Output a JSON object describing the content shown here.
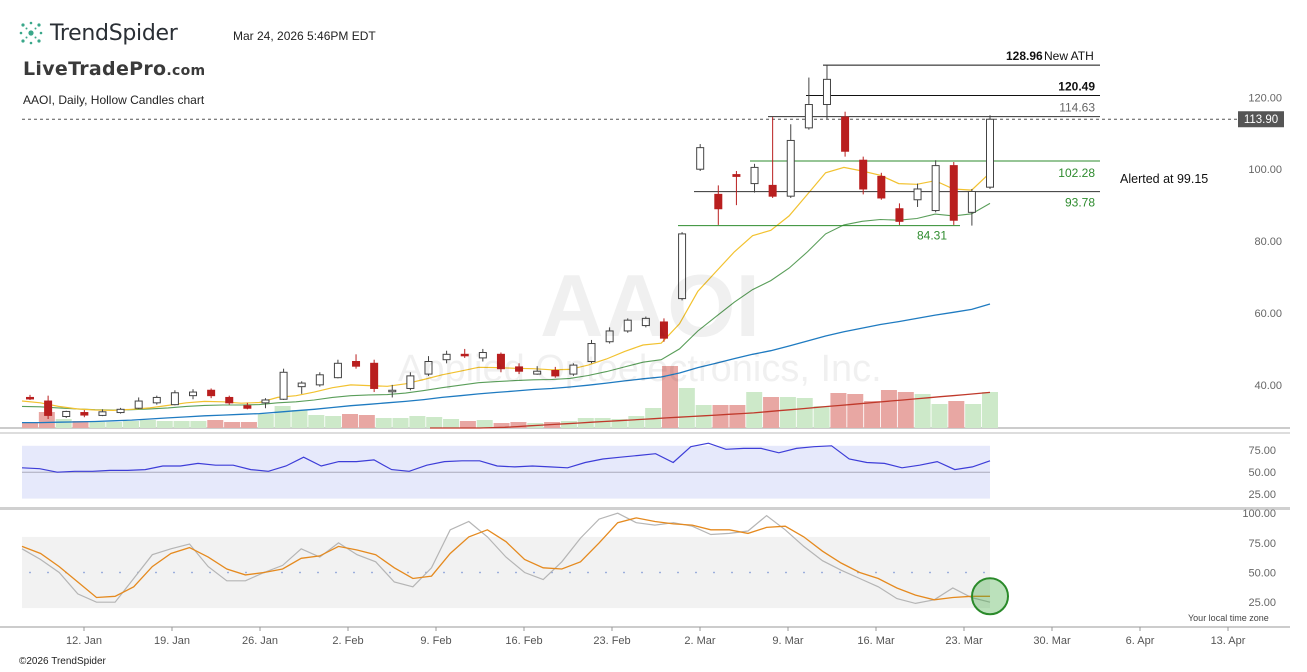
{
  "header": {
    "brand": "TrendSpider",
    "datetime": "Mar 24, 2026 5:46PM EDT",
    "overlay_brand": "LiveTradePro",
    "overlay_brand_suffix": ".com",
    "subtitle": "AAOI, Daily, Hollow Candles chart",
    "watermark_symbol": "AAOI",
    "watermark_company": "Applied Optoelectronics, Inc.",
    "copyright": "©2026 TrendSpider",
    "timezone_note": "Your local time zone"
  },
  "colors": {
    "up": "#9a9a9a",
    "down": "#b91f1f",
    "ema_fast": "#f2c230",
    "ema_mid": "#5a9e5a",
    "sma_50": "#1f7bc1",
    "sma_200": "#c0392b",
    "vol_up": "#cde9c9",
    "vol_down": "#e8a7a3",
    "rsi_line": "#3d3dd8",
    "rsi_band": "#e6e9fb",
    "stoch_k": "#b5b5b5",
    "stoch_d": "#e58a1f",
    "price_tag_bg": "#555555",
    "green_level": "#2e8b2e"
  },
  "chart_data": {
    "type": "candlestick",
    "symbol": "AAOI",
    "timeframe": "Daily",
    "ylim": [
      28,
      134
    ],
    "x_tick_labels": [
      "12. Jan",
      "19. Jan",
      "26. Jan",
      "2. Feb",
      "9. Feb",
      "16. Feb",
      "23. Feb",
      "2. Mar",
      "9. Mar",
      "16. Mar",
      "23. Mar",
      "30. Mar",
      "6. Apr",
      "13. Apr"
    ],
    "y_tick_labels": [
      "40.00",
      "60.00",
      "80.00",
      "100.00",
      "120.00"
    ],
    "last_price": "113.90",
    "candles": [
      {
        "o": 36.5,
        "h": 37.2,
        "l": 35.8,
        "c": 36.2
      },
      {
        "o": 35.5,
        "h": 37.0,
        "l": 30.5,
        "c": 31.5
      },
      {
        "o": 31.2,
        "h": 32.8,
        "l": 30.8,
        "c": 32.6
      },
      {
        "o": 32.3,
        "h": 33.0,
        "l": 31.0,
        "c": 31.6
      },
      {
        "o": 31.5,
        "h": 33.2,
        "l": 31.3,
        "c": 32.5
      },
      {
        "o": 32.3,
        "h": 33.6,
        "l": 32.0,
        "c": 33.2
      },
      {
        "o": 33.5,
        "h": 36.5,
        "l": 33.3,
        "c": 35.5
      },
      {
        "o": 35.0,
        "h": 37.0,
        "l": 34.5,
        "c": 36.5
      },
      {
        "o": 34.5,
        "h": 38.5,
        "l": 34.3,
        "c": 37.8
      },
      {
        "o": 37.0,
        "h": 38.8,
        "l": 36.0,
        "c": 38.0
      },
      {
        "o": 38.5,
        "h": 39.0,
        "l": 36.3,
        "c": 37.0
      },
      {
        "o": 36.5,
        "h": 37.0,
        "l": 34.5,
        "c": 35.0
      },
      {
        "o": 34.2,
        "h": 35.0,
        "l": 33.2,
        "c": 33.5
      },
      {
        "o": 35.0,
        "h": 36.3,
        "l": 33.5,
        "c": 35.8
      },
      {
        "o": 36.0,
        "h": 44.5,
        "l": 35.8,
        "c": 43.5
      },
      {
        "o": 39.5,
        "h": 41.0,
        "l": 37.5,
        "c": 40.5
      },
      {
        "o": 40.0,
        "h": 43.5,
        "l": 39.5,
        "c": 42.8
      },
      {
        "o": 42.0,
        "h": 47.0,
        "l": 41.8,
        "c": 46.0
      },
      {
        "o": 46.5,
        "h": 48.5,
        "l": 44.5,
        "c": 45.2
      },
      {
        "o": 46.0,
        "h": 47.0,
        "l": 38.0,
        "c": 39.0
      },
      {
        "o": 38.5,
        "h": 40.0,
        "l": 36.5,
        "c": 38.5
      },
      {
        "o": 39.0,
        "h": 43.5,
        "l": 38.5,
        "c": 42.5
      },
      {
        "o": 43.0,
        "h": 48.0,
        "l": 42.5,
        "c": 46.5
      },
      {
        "o": 47.0,
        "h": 49.5,
        "l": 46.0,
        "c": 48.5
      },
      {
        "o": 48.5,
        "h": 50.0,
        "l": 47.5,
        "c": 48.2
      },
      {
        "o": 47.5,
        "h": 50.0,
        "l": 46.5,
        "c": 49.0
      },
      {
        "o": 48.5,
        "h": 49.0,
        "l": 43.5,
        "c": 44.5
      },
      {
        "o": 45.0,
        "h": 46.0,
        "l": 43.0,
        "c": 43.8
      },
      {
        "o": 43.0,
        "h": 45.2,
        "l": 42.8,
        "c": 43.8
      },
      {
        "o": 44.0,
        "h": 45.0,
        "l": 42.0,
        "c": 42.5
      },
      {
        "o": 43.0,
        "h": 46.0,
        "l": 42.5,
        "c": 45.5
      },
      {
        "o": 46.5,
        "h": 52.5,
        "l": 46.0,
        "c": 51.5
      },
      {
        "o": 52.0,
        "h": 56.0,
        "l": 51.5,
        "c": 55.0
      },
      {
        "o": 55.0,
        "h": 58.5,
        "l": 54.5,
        "c": 58.0
      },
      {
        "o": 56.5,
        "h": 59.0,
        "l": 56.0,
        "c": 58.5
      },
      {
        "o": 57.5,
        "h": 58.5,
        "l": 52.0,
        "c": 53.0
      },
      {
        "o": 64.0,
        "h": 82.5,
        "l": 63.5,
        "c": 82.0
      },
      {
        "o": 100.0,
        "h": 107.0,
        "l": 99.5,
        "c": 106.0
      },
      {
        "o": 93.0,
        "h": 95.5,
        "l": 84.5,
        "c": 89.0
      },
      {
        "o": 98.5,
        "h": 99.5,
        "l": 90.0,
        "c": 98.0
      },
      {
        "o": 96.0,
        "h": 101.5,
        "l": 93.5,
        "c": 100.5
      },
      {
        "o": 95.5,
        "h": 114.5,
        "l": 92.0,
        "c": 92.5
      },
      {
        "o": 92.5,
        "h": 112.5,
        "l": 92.0,
        "c": 108.0
      },
      {
        "o": 111.5,
        "h": 125.5,
        "l": 111.0,
        "c": 118.0
      },
      {
        "o": 118.0,
        "h": 128.96,
        "l": 114.0,
        "c": 125.0
      },
      {
        "o": 114.5,
        "h": 116.0,
        "l": 103.5,
        "c": 105.0
      },
      {
        "o": 102.5,
        "h": 103.5,
        "l": 93.0,
        "c": 94.5
      },
      {
        "o": 98.0,
        "h": 99.0,
        "l": 91.5,
        "c": 92.0
      },
      {
        "o": 89.0,
        "h": 90.5,
        "l": 84.5,
        "c": 85.5
      },
      {
        "o": 91.5,
        "h": 96.0,
        "l": 89.5,
        "c": 94.5
      },
      {
        "o": 88.5,
        "h": 102.5,
        "l": 88.0,
        "c": 101.0
      },
      {
        "o": 101.0,
        "h": 102.0,
        "l": 84.5,
        "c": 85.8
      },
      {
        "o": 88.0,
        "h": 94.5,
        "l": 84.31,
        "c": 93.8
      },
      {
        "o": 95.0,
        "h": 115.0,
        "l": 94.5,
        "c": 113.9
      }
    ],
    "volume": [
      5,
      16,
      9,
      7,
      6,
      6,
      7,
      8,
      7,
      7,
      7,
      8,
      6,
      6,
      14,
      22,
      18,
      13,
      12,
      14,
      13,
      10,
      10,
      12,
      11,
      9,
      7,
      8,
      5,
      6,
      5,
      6,
      7,
      10,
      10,
      9,
      12,
      20,
      62,
      40,
      23,
      23,
      23,
      36,
      31,
      31,
      30,
      22,
      35,
      34,
      27,
      38,
      36,
      34,
      24,
      27,
      24,
      36
    ],
    "ema_fast": [
      35.5,
      35.0,
      34.0,
      33.3,
      33.0,
      32.9,
      33.2,
      33.6,
      34.3,
      35.0,
      35.4,
      35.3,
      34.9,
      35.1,
      36.5,
      37.0,
      38.0,
      39.2,
      40.0,
      39.8,
      39.6,
      40.3,
      41.5,
      42.8,
      43.8,
      44.9,
      44.8,
      44.6,
      44.5,
      44.2,
      44.3,
      45.5,
      47.2,
      49.3,
      51.1,
      51.6,
      57.0,
      66.0,
      71.5,
      77.0,
      81.5,
      83.0,
      87.0,
      93.0,
      99.0,
      100.5,
      99.5,
      98.3,
      96.0,
      95.8,
      96.8,
      94.5,
      94.2,
      99.0
    ],
    "ema_mid": [
      34.0,
      33.9,
      33.6,
      33.3,
      33.1,
      33.0,
      33.1,
      33.3,
      33.6,
      34.0,
      34.3,
      34.4,
      34.4,
      34.5,
      35.0,
      35.3,
      35.8,
      36.5,
      37.0,
      37.2,
      37.3,
      37.7,
      38.4,
      39.2,
      39.9,
      40.6,
      40.9,
      41.2,
      41.4,
      41.5,
      41.8,
      42.6,
      43.7,
      45.0,
      46.3,
      47.0,
      50.0,
      55.0,
      59.0,
      63.0,
      66.5,
      69.0,
      72.5,
      77.0,
      82.0,
      84.5,
      85.5,
      86.0,
      85.8,
      86.3,
      87.5,
      87.0,
      87.6,
      90.5
    ],
    "sma_50": [
      29.5,
      29.5,
      29.6,
      29.7,
      29.8,
      30.0,
      30.2,
      30.5,
      30.8,
      31.1,
      31.4,
      31.6,
      31.8,
      32.0,
      32.4,
      32.8,
      33.2,
      33.7,
      34.2,
      34.6,
      35.0,
      35.4,
      35.9,
      36.5,
      37.0,
      37.5,
      37.9,
      38.3,
      38.7,
      39.0,
      39.4,
      39.9,
      40.5,
      41.1,
      41.7,
      42.2,
      43.3,
      44.8,
      46.0,
      47.3,
      48.5,
      49.5,
      50.8,
      52.2,
      53.6,
      54.8,
      55.8,
      56.8,
      57.6,
      58.5,
      59.4,
      60.2,
      61.0,
      62.5
    ],
    "sma_200": [
      28.0,
      28.0,
      28.0,
      28.0,
      28.0,
      28.1,
      28.2,
      28.4,
      28.6,
      28.8,
      29.0,
      29.2,
      29.4,
      29.6,
      29.8,
      30.0,
      30.2,
      30.4,
      30.6,
      30.8,
      31.0,
      31.2,
      31.4,
      31.6,
      31.8,
      32.0,
      32.2,
      32.5,
      32.8,
      33.1,
      33.4,
      33.7,
      34.0,
      34.3,
      34.6,
      34.9,
      35.2,
      35.5,
      35.8,
      36.1,
      36.4,
      36.7,
      37.0,
      37.3,
      37.6,
      37.9
    ],
    "rsi": [
      55,
      54,
      50,
      51,
      51,
      52,
      52,
      53,
      57,
      57,
      60,
      58,
      58,
      53,
      51,
      57,
      67,
      57,
      62,
      62,
      64,
      53,
      51,
      58,
      62,
      63,
      63,
      57,
      56,
      57,
      56,
      55,
      61,
      65,
      67,
      69,
      71,
      61,
      79,
      83,
      76,
      77,
      77,
      72,
      77,
      79,
      80,
      65,
      61,
      60,
      55,
      58,
      62,
      53,
      56,
      63
    ],
    "rsi_ticks": [
      "75.00",
      "50.00",
      "25.00"
    ],
    "stoch_k": [
      70,
      61,
      50,
      32,
      25,
      25,
      45,
      65,
      70,
      74,
      55,
      43,
      43,
      50,
      56,
      70,
      63,
      75,
      65,
      59,
      42,
      38,
      54,
      86,
      93,
      80,
      63,
      50,
      44,
      59,
      79,
      95,
      100,
      92,
      90,
      92,
      89,
      82,
      83,
      85,
      98,
      86,
      72,
      60,
      52,
      45,
      38,
      28,
      24,
      27,
      37,
      29,
      25
    ],
    "stoch_d": [
      72,
      66,
      55,
      42,
      29,
      30,
      38,
      55,
      66,
      71,
      63,
      53,
      48,
      50,
      53,
      62,
      64,
      72,
      69,
      65,
      54,
      45,
      47,
      66,
      80,
      86,
      76,
      61,
      54,
      53,
      59,
      75,
      92,
      96,
      93,
      91,
      90,
      86,
      86,
      83,
      88,
      89,
      80,
      68,
      58,
      50,
      45,
      37,
      31,
      27,
      29,
      30,
      30
    ],
    "stoch_ticks": [
      "100.00",
      "75.00",
      "50.00",
      "25.00"
    ],
    "levels": [
      {
        "value": "128.96",
        "label": "New ATH"
      },
      {
        "value": "120.49",
        "label": ""
      },
      {
        "value": "114.63",
        "label": ""
      },
      {
        "value": "102.28",
        "label": ""
      },
      {
        "value": "93.78",
        "label": ""
      },
      {
        "value": "84.31",
        "label": ""
      }
    ],
    "annotation": "Alerted at 99.15"
  }
}
